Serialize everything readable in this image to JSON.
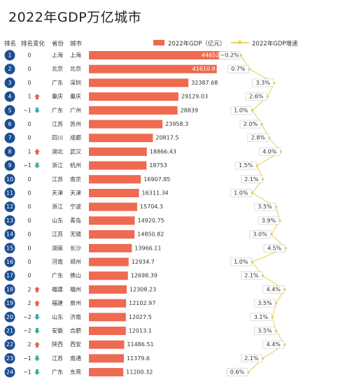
{
  "page": {
    "title": "2022年GDP万亿城市"
  },
  "headers": {
    "rank": "排名",
    "change": "排名变化",
    "province": "省份",
    "city": "城市",
    "gdp": "2022年GDP（亿元）",
    "growth": "2022年GDP增速"
  },
  "colors": {
    "bar": "#ee6a50",
    "badge": "#1c4e92",
    "growth_line": "#ecd566",
    "up": "#e2614a",
    "down": "#3ea8a3"
  },
  "chart_data": {
    "type": "bar",
    "title": "2022年GDP万亿城市",
    "xlabel": "",
    "ylabel": "",
    "xlim": [
      0,
      44652.8
    ],
    "rows": [
      {
        "rank": "1",
        "change": "0",
        "dir": "",
        "province": "上海",
        "city": "上海",
        "gdp": 44652.8,
        "gdp_label": "44652.8",
        "growth": -0.2,
        "growth_label": "−0.2%"
      },
      {
        "rank": "2",
        "change": "0",
        "dir": "",
        "province": "北京",
        "city": "北京",
        "gdp": 41610.9,
        "gdp_label": "41610.9",
        "growth": 0.7,
        "growth_label": "0.7%"
      },
      {
        "rank": "3",
        "change": "0",
        "dir": "",
        "province": "广东",
        "city": "深圳",
        "gdp": 32387.68,
        "gdp_label": "32387.68",
        "growth": 3.3,
        "growth_label": "3.3%"
      },
      {
        "rank": "4",
        "change": "1",
        "dir": "up",
        "province": "重庆",
        "city": "重庆",
        "gdp": 29129.03,
        "gdp_label": "29129.03",
        "growth": 2.6,
        "growth_label": "2.6%"
      },
      {
        "rank": "5",
        "change": "−1",
        "dir": "down",
        "province": "广东",
        "city": "广州",
        "gdp": 28839,
        "gdp_label": "28839",
        "growth": 1.0,
        "growth_label": "1.0%"
      },
      {
        "rank": "6",
        "change": "0",
        "dir": "",
        "province": "江苏",
        "city": "苏州",
        "gdp": 23958.3,
        "gdp_label": "23958.3",
        "growth": 2.0,
        "growth_label": "2.0%"
      },
      {
        "rank": "7",
        "change": "0",
        "dir": "",
        "province": "四川",
        "city": "成都",
        "gdp": 20817.5,
        "gdp_label": "20817.5",
        "growth": 2.8,
        "growth_label": "2.8%"
      },
      {
        "rank": "8",
        "change": "1",
        "dir": "up",
        "province": "湖北",
        "city": "武汉",
        "gdp": 18866.43,
        "gdp_label": "18866.43",
        "growth": 4.0,
        "growth_label": "4.0%"
      },
      {
        "rank": "9",
        "change": "−1",
        "dir": "down",
        "province": "浙江",
        "city": "杭州",
        "gdp": 18753,
        "gdp_label": "18753",
        "growth": 1.5,
        "growth_label": "1.5%"
      },
      {
        "rank": "10",
        "change": "0",
        "dir": "",
        "province": "江苏",
        "city": "南京",
        "gdp": 16907.85,
        "gdp_label": "16907.85",
        "growth": 2.1,
        "growth_label": "2.1%"
      },
      {
        "rank": "11",
        "change": "0",
        "dir": "",
        "province": "天津",
        "city": "天津",
        "gdp": 16311.34,
        "gdp_label": "16311.34",
        "growth": 1.0,
        "growth_label": "1.0%"
      },
      {
        "rank": "12",
        "change": "0",
        "dir": "",
        "province": "浙江",
        "city": "宁波",
        "gdp": 15704.3,
        "gdp_label": "15704.3",
        "growth": 3.5,
        "growth_label": "3.5%"
      },
      {
        "rank": "13",
        "change": "0",
        "dir": "",
        "province": "山东",
        "city": "青岛",
        "gdp": 14920.75,
        "gdp_label": "14920.75",
        "growth": 3.9,
        "growth_label": "3.9%"
      },
      {
        "rank": "14",
        "change": "0",
        "dir": "",
        "province": "江苏",
        "city": "无锡",
        "gdp": 14850.82,
        "gdp_label": "14850.82",
        "growth": 3.0,
        "growth_label": "3.0%"
      },
      {
        "rank": "15",
        "change": "0",
        "dir": "",
        "province": "湖南",
        "city": "长沙",
        "gdp": 13966.11,
        "gdp_label": "13966.11",
        "growth": 4.5,
        "growth_label": "4.5%"
      },
      {
        "rank": "16",
        "change": "0",
        "dir": "",
        "province": "河南",
        "city": "郑州",
        "gdp": 12934.7,
        "gdp_label": "12934.7",
        "growth": 1.0,
        "growth_label": "1.0%"
      },
      {
        "rank": "17",
        "change": "0",
        "dir": "",
        "province": "广东",
        "city": "佛山",
        "gdp": 12698.39,
        "gdp_label": "12698.39",
        "growth": 2.1,
        "growth_label": "2.1%"
      },
      {
        "rank": "18",
        "change": "2",
        "dir": "up",
        "province": "福建",
        "city": "福州",
        "gdp": 12308.23,
        "gdp_label": "12308.23",
        "growth": 4.4,
        "growth_label": "4.4%"
      },
      {
        "rank": "19",
        "change": "2",
        "dir": "up",
        "province": "福建",
        "city": "泉州",
        "gdp": 12102.97,
        "gdp_label": "12102.97",
        "growth": 3.5,
        "growth_label": "3.5%"
      },
      {
        "rank": "20",
        "change": "−2",
        "dir": "down",
        "province": "山东",
        "city": "济南",
        "gdp": 12027.5,
        "gdp_label": "12027.5",
        "growth": 3.1,
        "growth_label": "3.1%"
      },
      {
        "rank": "21",
        "change": "−2",
        "dir": "down",
        "province": "安徽",
        "city": "合肥",
        "gdp": 12013.1,
        "gdp_label": "12013.1",
        "growth": 3.5,
        "growth_label": "3.5%"
      },
      {
        "rank": "22",
        "change": "2",
        "dir": "up",
        "province": "陕西",
        "city": "西安",
        "gdp": 11486.51,
        "gdp_label": "11486.51",
        "growth": 4.4,
        "growth_label": "4.4%"
      },
      {
        "rank": "23",
        "change": "−1",
        "dir": "down",
        "province": "江苏",
        "city": "南通",
        "gdp": 11379.6,
        "gdp_label": "11379.6",
        "growth": 2.1,
        "growth_label": "2.1%"
      },
      {
        "rank": "24",
        "change": "−1",
        "dir": "down",
        "province": "广东",
        "city": "东莞",
        "gdp": 11200.32,
        "gdp_label": "11200.32",
        "growth": 0.6,
        "growth_label": "0.6%"
      }
    ]
  }
}
